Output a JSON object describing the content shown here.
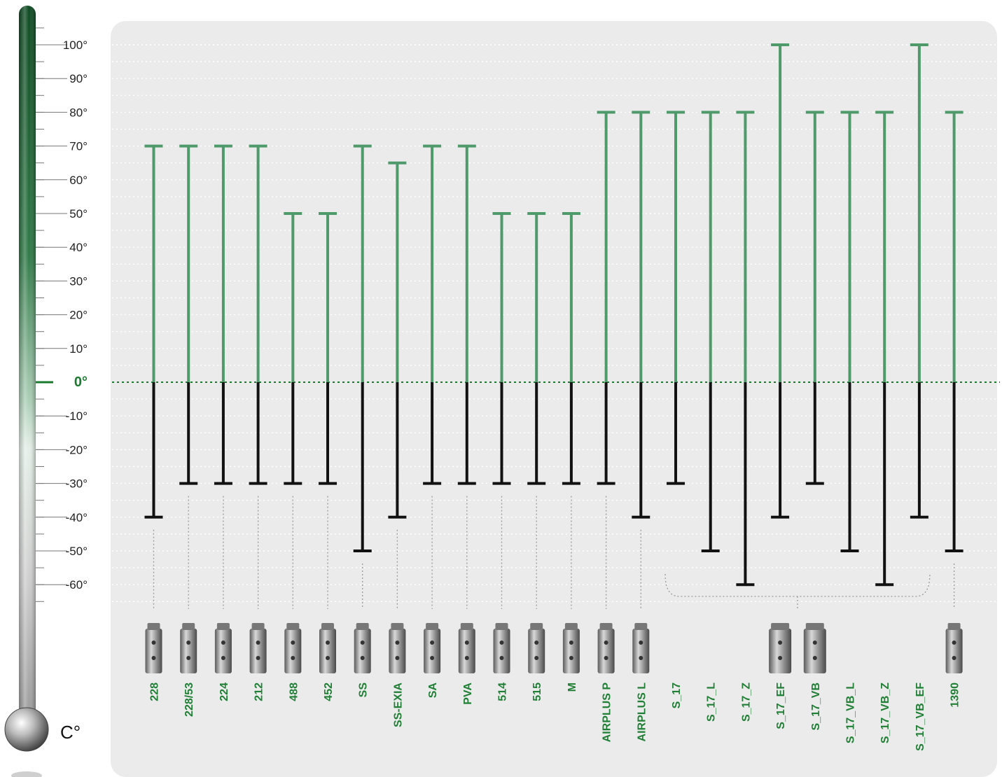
{
  "chart_data": {
    "type": "range-bar",
    "unit_label": "C°",
    "y_ticks": [
      {
        "value": 100,
        "label": "100°"
      },
      {
        "value": 90,
        "label": "90°"
      },
      {
        "value": 80,
        "label": "80°"
      },
      {
        "value": 70,
        "label": "70°"
      },
      {
        "value": 60,
        "label": "60°"
      },
      {
        "value": 50,
        "label": "50°"
      },
      {
        "value": 40,
        "label": "40°"
      },
      {
        "value": 30,
        "label": "30°"
      },
      {
        "value": 20,
        "label": "20°"
      },
      {
        "value": 10,
        "label": "10°"
      },
      {
        "value": 0,
        "label": "0°"
      },
      {
        "value": -10,
        "label": "-10°"
      },
      {
        "value": -20,
        "label": "-20°"
      },
      {
        "value": -30,
        "label": "-30°"
      },
      {
        "value": -40,
        "label": "-40°"
      },
      {
        "value": -50,
        "label": "-50°"
      },
      {
        "value": -60,
        "label": "-60°"
      }
    ],
    "ylim": [
      -60,
      100
    ],
    "grid": true,
    "colors": {
      "positive": "#4e9a6a",
      "negative": "#111111",
      "zero_line": "#1a7a2e",
      "label": "#1f7f34"
    },
    "products": [
      {
        "name": "228",
        "min": -40,
        "max": 70
      },
      {
        "name": "228/53",
        "min": -30,
        "max": 70
      },
      {
        "name": "224",
        "min": -30,
        "max": 70
      },
      {
        "name": "212",
        "min": -30,
        "max": 70
      },
      {
        "name": "488",
        "min": -30,
        "max": 50
      },
      {
        "name": "452",
        "min": -30,
        "max": 50
      },
      {
        "name": "SS",
        "min": -50,
        "max": 70
      },
      {
        "name": "SS-EXIA",
        "min": -40,
        "max": 65
      },
      {
        "name": "SA",
        "min": -30,
        "max": 70
      },
      {
        "name": "PVA",
        "min": -30,
        "max": 70
      },
      {
        "name": "514",
        "min": -30,
        "max": 50
      },
      {
        "name": "515",
        "min": -30,
        "max": 50
      },
      {
        "name": "M",
        "min": -30,
        "max": 50
      },
      {
        "name": "AIRPLUS P",
        "min": -30,
        "max": 80
      },
      {
        "name": "AIRPLUS L",
        "min": -40,
        "max": 80
      },
      {
        "name": "S_17",
        "min": -30,
        "max": 80
      },
      {
        "name": "S_17_L",
        "min": -50,
        "max": 80
      },
      {
        "name": "S_17_Z",
        "min": -60,
        "max": 80
      },
      {
        "name": "S_17_EF",
        "min": -40,
        "max": 100
      },
      {
        "name": "S_17_VB",
        "min": -30,
        "max": 80
      },
      {
        "name": "S_17_VB_L",
        "min": -50,
        "max": 80
      },
      {
        "name": "S_17_VB_Z",
        "min": -60,
        "max": 80
      },
      {
        "name": "S_17_VB_EF",
        "min": -40,
        "max": 100
      },
      {
        "name": "1390",
        "min": -50,
        "max": 80
      }
    ]
  }
}
